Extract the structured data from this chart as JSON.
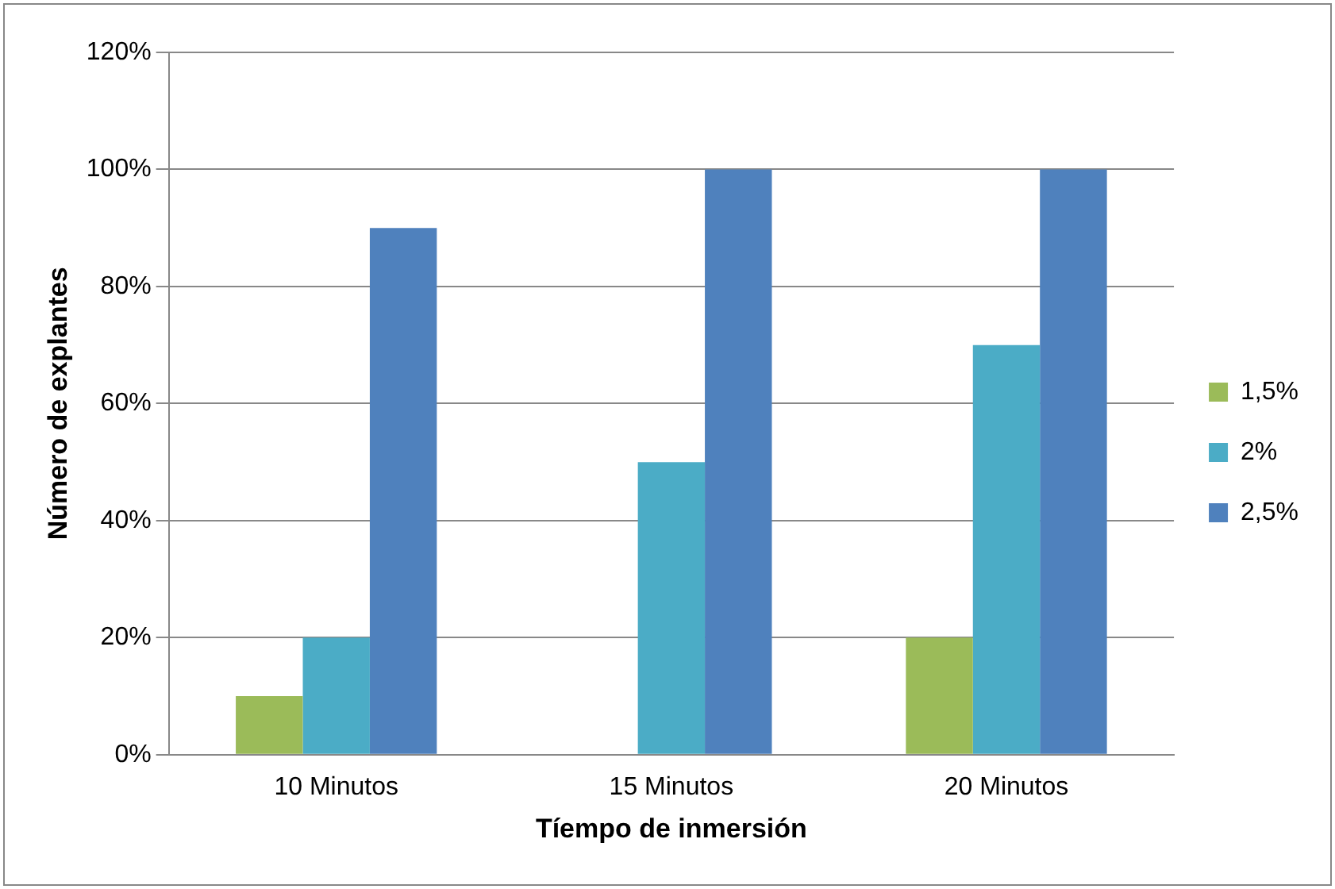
{
  "chart_data": {
    "type": "bar",
    "xlabel": "Tíempo de inmersión",
    "ylabel": "Número de explantes",
    "categories": [
      "10 Minutos",
      "15 Minutos",
      "20 Minutos"
    ],
    "series": [
      {
        "name": "1,5%",
        "color": "#9bbb59",
        "values": [
          10,
          0,
          20
        ]
      },
      {
        "name": "2%",
        "color": "#4bacc6",
        "values": [
          20,
          50,
          70
        ]
      },
      {
        "name": "2,5%",
        "color": "#4f81bd",
        "values": [
          90,
          100,
          100
        ]
      }
    ],
    "ylim": [
      0,
      120
    ],
    "yticks": [
      {
        "value": 0,
        "label": "0%"
      },
      {
        "value": 20,
        "label": "20%"
      },
      {
        "value": 40,
        "label": "40%"
      },
      {
        "value": 60,
        "label": "60%"
      },
      {
        "value": 80,
        "label": "80%"
      },
      {
        "value": 100,
        "label": "100%"
      },
      {
        "value": 120,
        "label": "120%"
      }
    ],
    "grid": "y",
    "legend": "right"
  }
}
